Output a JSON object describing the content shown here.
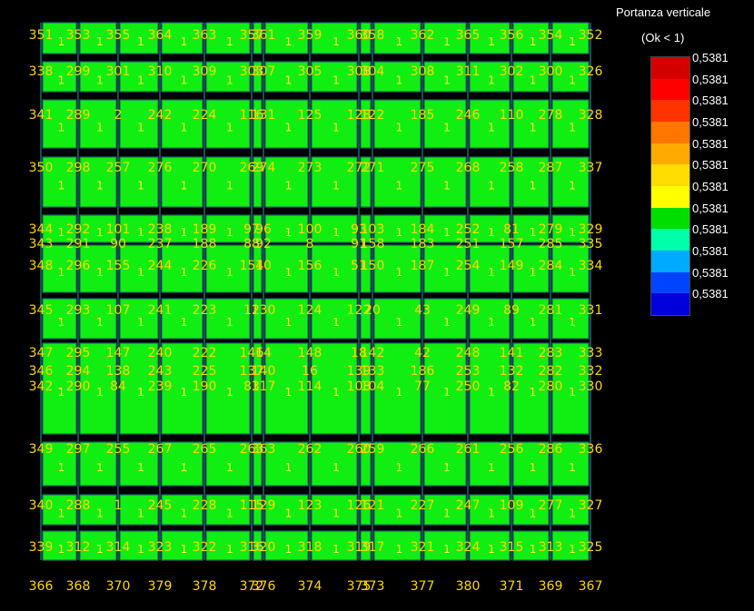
{
  "legend": {
    "title": "Portanza verticale",
    "subtitle": "(Ok < 1)",
    "values": [
      "0,5381",
      "0,5381",
      "0,5381",
      "0,5381",
      "0,5381",
      "0,5381",
      "0,5381",
      "0,5381",
      "0,5381",
      "0,5381",
      "0,5381",
      "0,5381"
    ],
    "colors": [
      "#d40000",
      "#ff0000",
      "#ff3300",
      "#ff7700",
      "#ffaa00",
      "#ffdd00",
      "#ffff00",
      "#00dd00",
      "#00ffaa",
      "#00aaff",
      "#0044ff",
      "#0000dd"
    ]
  },
  "colors": {
    "background": "#000000",
    "panel": "#11ee11",
    "grid": "#1a6b6b",
    "node_text": "#ffd700",
    "panel_text": "#ffff33"
  },
  "cell_value": "1",
  "rows": [
    [
      "351",
      "353",
      "355",
      "364",
      "363",
      "357",
      "361",
      "359",
      "360",
      "358",
      "362",
      "365",
      "356",
      "354",
      "352"
    ],
    [
      "338",
      "299",
      "301",
      "310",
      "309",
      "303",
      "307",
      "305",
      "308",
      "304",
      "308",
      "311",
      "302",
      "300",
      "326"
    ],
    [
      "341",
      "289",
      "2",
      "242",
      "224",
      "116",
      "131",
      "125",
      "128",
      "122",
      "185",
      "246",
      "110",
      "278",
      "328"
    ],
    [
      "350",
      "298",
      "257",
      "276",
      "270",
      "269",
      "274",
      "273",
      "272",
      "271",
      "275",
      "268",
      "258",
      "287",
      "337"
    ],
    [
      "344",
      "292",
      "101",
      "238",
      "189",
      "97",
      "96",
      "100",
      "93",
      "103",
      "184",
      "252",
      "81",
      "279",
      "329"
    ],
    [
      "343",
      "291",
      "90",
      "237",
      "188",
      "88",
      "92",
      "8",
      "91",
      "158",
      "183",
      "251",
      "157",
      "285",
      "335"
    ],
    [
      "348",
      "296",
      "155",
      "244",
      "226",
      "154",
      "10",
      "156",
      "51",
      "150",
      "187",
      "254",
      "149",
      "284",
      "334"
    ],
    [
      "345",
      "293",
      "107",
      "241",
      "223",
      "12",
      "130",
      "124",
      "122",
      "20",
      "43",
      "249",
      "89",
      "281",
      "331"
    ],
    [
      "347",
      "295",
      "147",
      "240",
      "222",
      "146",
      "14",
      "148",
      "18",
      "142",
      "42",
      "248",
      "141",
      "283",
      "333"
    ],
    [
      "346",
      "294",
      "138",
      "243",
      "225",
      "137",
      "140",
      "16",
      "139",
      "133",
      "186",
      "253",
      "132",
      "282",
      "332"
    ],
    [
      "342",
      "290",
      "84",
      "239",
      "190",
      "83",
      "117",
      "114",
      "108",
      "104",
      "77",
      "250",
      "82",
      "280",
      "330"
    ],
    [
      "349",
      "297",
      "255",
      "267",
      "265",
      "263",
      "363",
      "262",
      "260",
      "259",
      "266",
      "261",
      "256",
      "286",
      "336"
    ],
    [
      "340",
      "288",
      "1",
      "245",
      "228",
      "115",
      "129",
      "123",
      "126",
      "121",
      "227",
      "247",
      "109",
      "277",
      "327"
    ],
    [
      "339",
      "312",
      "314",
      "323",
      "322",
      "316",
      "320",
      "318",
      "319",
      "317",
      "321",
      "324",
      "315",
      "313",
      "325"
    ],
    [
      "366",
      "368",
      "370",
      "379",
      "378",
      "372",
      "376",
      "374",
      "375",
      "373",
      "377",
      "380",
      "371",
      "369",
      "367"
    ]
  ]
}
